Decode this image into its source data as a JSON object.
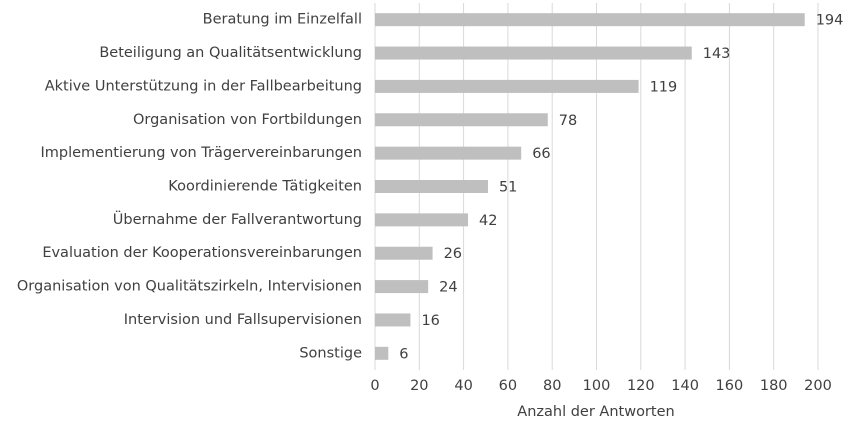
{
  "chart_data": {
    "type": "bar",
    "orientation": "horizontal",
    "x_label": "Anzahl der Antworten",
    "categories": [
      "Beratung im Einzelfall",
      "Beteiligung an Qualitätsentwicklung",
      "Aktive Unterstützung in der Fallbearbeitung",
      "Organisation von Fortbildungen",
      "Implementierung von Trägervereinbarungen",
      "Koordinierende Tätigkeiten",
      "Übernahme der Fallverantwortung",
      "Evaluation der Kooperationsvereinbarungen",
      "Organisation von Qualitätszirkeln, Intervisionen",
      "Intervision und Fallsupervisionen",
      "Sonstige"
    ],
    "values": [
      194,
      143,
      119,
      78,
      66,
      51,
      42,
      26,
      24,
      16,
      6
    ],
    "color": "#bfbfbf",
    "xlim": [
      0,
      200
    ],
    "xticks": [
      0,
      20,
      40,
      60,
      80,
      100,
      120,
      140,
      160,
      180,
      200
    ],
    "grid": true
  }
}
